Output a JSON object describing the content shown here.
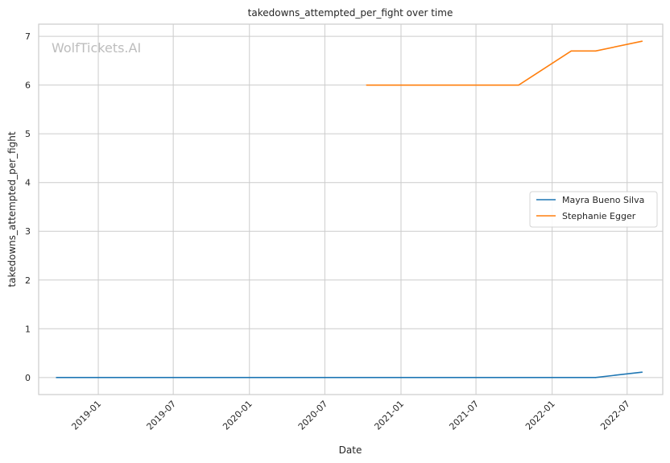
{
  "chart_data": {
    "type": "line",
    "title": "takedowns_attempted_per_fight over time",
    "xlabel": "Date",
    "ylabel": "takedowns_attempted_per_fight",
    "watermark": "WolfTickets.AI",
    "xlim": [
      "2018-08-10",
      "2022-09-25"
    ],
    "ylim": [
      -0.35,
      7.25
    ],
    "x_ticks": [
      "2019-01",
      "2019-07",
      "2020-01",
      "2020-07",
      "2021-01",
      "2021-07",
      "2022-01",
      "2022-07"
    ],
    "y_ticks": [
      0,
      1,
      2,
      3,
      4,
      5,
      6,
      7
    ],
    "grid": true,
    "legend_position": "center-right",
    "series": [
      {
        "name": "Mayra Bueno Silva",
        "color": "#1f77b4",
        "x": [
          "2018-09-22",
          "2022-04-16",
          "2022-08-06"
        ],
        "y": [
          0,
          0,
          0.11
        ]
      },
      {
        "name": "Stephanie Egger",
        "color": "#ff7f0e",
        "x": [
          "2020-10-10",
          "2021-10-12",
          "2022-02-16",
          "2022-04-16",
          "2022-08-06"
        ],
        "y": [
          6.0,
          6.0,
          6.7,
          6.7,
          6.9
        ]
      }
    ]
  }
}
